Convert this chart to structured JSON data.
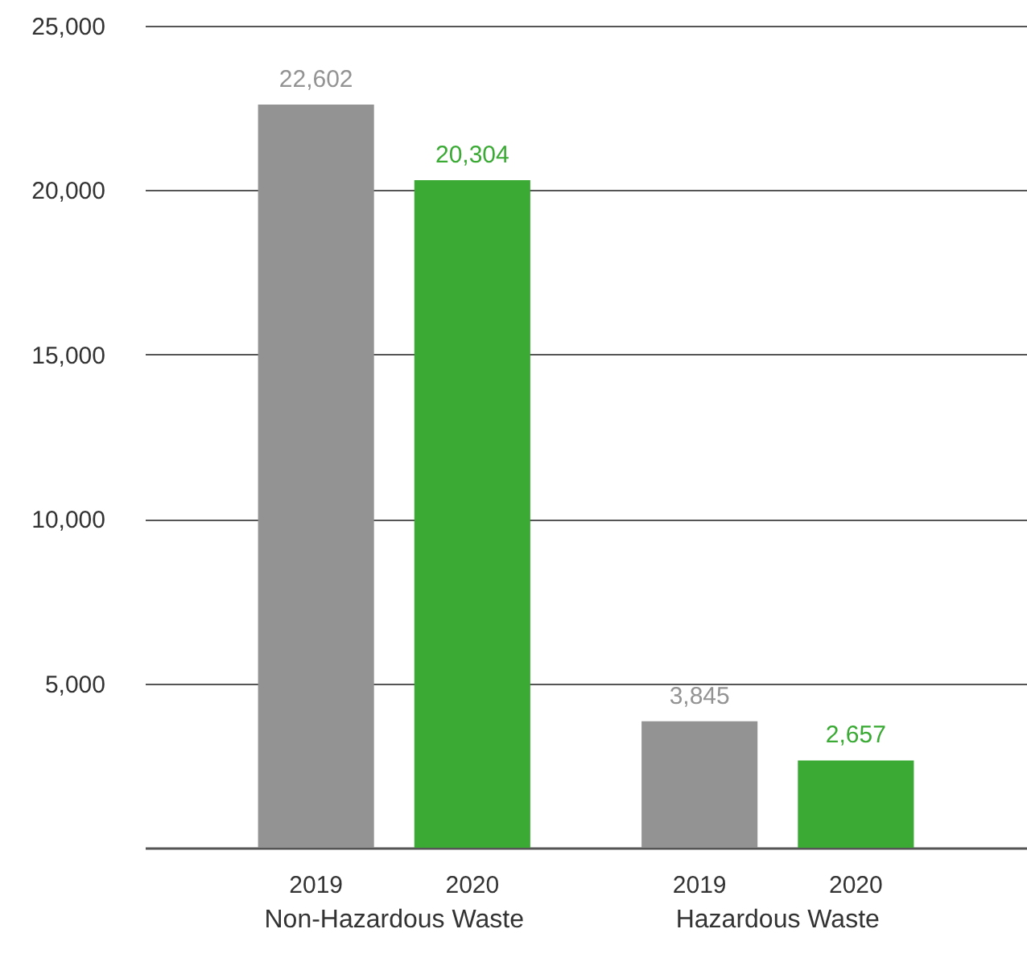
{
  "chart_data": {
    "type": "bar",
    "categories": [
      "Non-Hazardous Waste",
      "Hazardous Waste"
    ],
    "series": [
      {
        "name": "2019",
        "color": "#939393",
        "values": [
          22602,
          3845
        ],
        "value_labels": [
          "22,602",
          "3,845"
        ]
      },
      {
        "name": "2020",
        "color": "#3aaa35",
        "values": [
          20304,
          2657
        ],
        "value_labels": [
          "20,304",
          "2,657"
        ]
      }
    ],
    "ylim": [
      0,
      25000
    ],
    "yticks": [
      {
        "value": 5000,
        "label": "5,000"
      },
      {
        "value": 10000,
        "label": "10,000"
      },
      {
        "value": 15000,
        "label": "15,000"
      },
      {
        "value": 20000,
        "label": "20,000"
      },
      {
        "value": 25000,
        "label": "25,000"
      }
    ],
    "grid": "y"
  }
}
